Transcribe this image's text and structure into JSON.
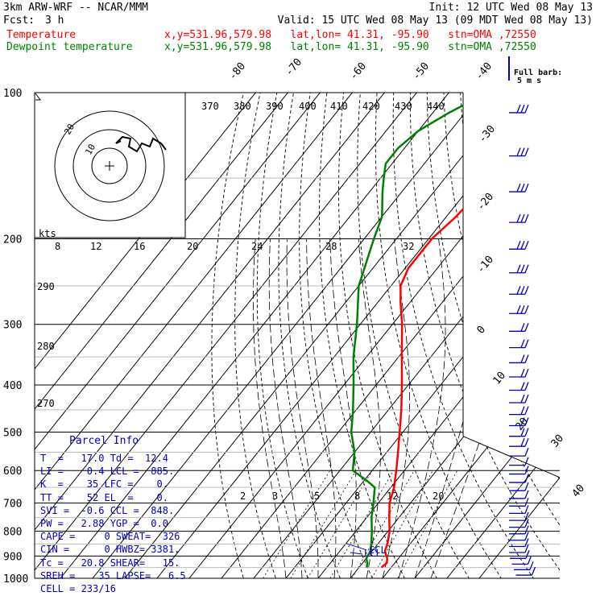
{
  "header": {
    "model": "3km ARW-WRF -- NCAR/MMM",
    "init": "Init: 12 UTC Wed 08 May 13",
    "fcst_label": "Fcst:",
    "fcst_value": "3 h",
    "valid": "Valid: 15 UTC Wed 08 May 13 (09 MDT Wed 08 May 13)",
    "temp_label": "Temperature",
    "temp_info": "x,y=531.96,579.98   lat,lon= 41.31, -95.90   stn=OMA ,72550",
    "dew_label": "Dewpoint temperature",
    "dew_info": "x,y=531.96,579.98   lat,lon= 41.31, -95.90   stn=OMA ,72550"
  },
  "colors": {
    "temperature": "#ff0000",
    "dewpoint": "#008000",
    "info": "#0000c0",
    "wind": "#0000c0"
  },
  "chart_data": {
    "type": "line",
    "title": "",
    "yscale": "log-pressure",
    "ylim": [
      1000,
      100
    ],
    "pressure_labels": [
      "100",
      "200",
      "300",
      "400",
      "500",
      "600",
      "700",
      "800",
      "900",
      "1000"
    ],
    "isotherm_labels": [
      "-80",
      "-70",
      "-60",
      "-50",
      "-40",
      "-30",
      "-20",
      "-10",
      "0",
      "10",
      "20",
      "30",
      "40"
    ],
    "theta_labels": [
      "370",
      "380",
      "390",
      "400",
      "410",
      "420",
      "430",
      "440",
      "290",
      "280",
      "270"
    ],
    "mixing_ratio_labels": [
      "2",
      "3",
      "5",
      "8",
      "12",
      "20"
    ],
    "hodo_kts_label": "kts",
    "hodo_speed_labels": [
      "8",
      "12",
      "16",
      "20",
      "24",
      "28",
      "32"
    ],
    "hodo_ring_labels": [
      "20",
      "10"
    ],
    "full_barb_label": "Full barb:",
    "full_barb_value": "5 m s",
    "ccl_label": "CCL",
    "lcl_label": "LCL",
    "series": [
      {
        "name": "Temperature",
        "p": [
          950,
          930,
          910,
          880,
          850,
          800,
          750,
          700,
          650,
          600,
          550,
          500,
          450,
          400,
          350,
          300,
          270,
          250,
          230,
          200,
          180,
          160,
          150,
          140,
          130,
          120,
          110,
          100
        ],
        "temp": [
          17,
          17.5,
          16.5,
          14,
          13,
          10.5,
          7,
          3.5,
          1,
          -2.5,
          -6.5,
          -11,
          -16,
          -22,
          -29,
          -37,
          -43,
          -47,
          -49,
          -49,
          -47,
          -46,
          -48,
          -51,
          -55,
          -58,
          -61,
          -64
        ]
      },
      {
        "name": "Dewpoint temperature",
        "p": [
          950,
          930,
          910,
          880,
          850,
          800,
          750,
          700,
          650,
          630,
          600,
          550,
          500,
          450,
          400,
          350,
          300,
          250,
          200,
          180,
          160,
          150,
          140,
          130,
          120,
          110,
          100
        ],
        "temp": [
          12.4,
          11.5,
          10,
          9.5,
          8,
          5,
          1.5,
          -1.5,
          -5,
          -9,
          -16,
          -20,
          -26,
          -31,
          -37,
          -44,
          -51,
          -60,
          -67,
          -70,
          -76,
          -79,
          -82,
          -82,
          -80,
          -75,
          -68
        ]
      }
    ]
  },
  "parcel_info": {
    "title": "Parcel Info",
    "rows": [
      "T  =   17.0 Td =  12.4",
      "LI =    0.4 LCL =  885.",
      "K  =    35 LFC =    0.",
      "TT =    52 EL  =    0.",
      "SVI =  -0.6 CCL =  848.",
      "PW =   2.88 YGP =  0.0",
      "CAPE =     0 SWEAT=  326",
      "CIN =      0 HWBZ= 3381.",
      "Tc =   20.8 SHEAR=   15.",
      "SREH =    35 LAPSE=   6.5",
      "CELL = 233/16"
    ]
  }
}
